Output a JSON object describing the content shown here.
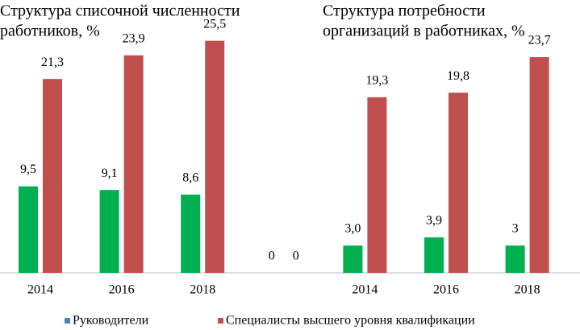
{
  "chart_data": {
    "type": "bar",
    "titles": [
      [
        "Структура списочной численности",
        "работников, %"
      ],
      [
        "Структура потребности",
        "организаций в работниках, %"
      ]
    ],
    "categories": [
      "2014",
      "2016",
      "2018",
      null,
      "2014",
      "2016",
      "2018"
    ],
    "series": [
      {
        "name": "Руководители",
        "color": "#00b050",
        "legend_color": "#4f81bd",
        "values": [
          9.5,
          9.1,
          8.6,
          0,
          3.0,
          3.9,
          3
        ],
        "value_labels": [
          "9,5",
          "9,1",
          "8,6",
          "0",
          "3,0",
          "3,9",
          "3"
        ]
      },
      {
        "name": "Специалисты высшего уровня квалификации",
        "color": "#c0504d",
        "legend_color": "#c0504d",
        "values": [
          21.3,
          23.9,
          25.5,
          0,
          19.3,
          19.8,
          23.7
        ],
        "value_labels": [
          "21,3",
          "23,9",
          "25,5",
          "0",
          "19,3",
          "19,8",
          "23,7"
        ]
      }
    ],
    "ylim": [
      0,
      26
    ]
  }
}
